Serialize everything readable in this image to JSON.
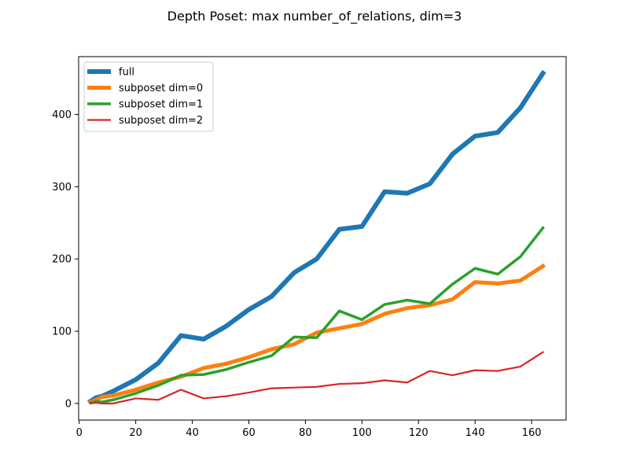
{
  "chart_data": {
    "type": "line",
    "title": "Depth Poset: max number_of_relations, dim=3",
    "xlabel": "",
    "ylabel": "",
    "xlim": [
      -0.2,
      172.2
    ],
    "ylim": [
      -23,
      480
    ],
    "xticks": [
      0,
      20,
      40,
      60,
      80,
      100,
      120,
      140,
      160
    ],
    "yticks": [
      0,
      100,
      200,
      300,
      400
    ],
    "grid": false,
    "legend_position": "upper left",
    "series": [
      {
        "name": "full",
        "color": "#1f77b4",
        "weight": "thick",
        "x": [
          4,
          6,
          8,
          12,
          20,
          28,
          36,
          44,
          52,
          60,
          68,
          76,
          84,
          92,
          100,
          108,
          116,
          124,
          132,
          140,
          148,
          156,
          164
        ],
        "y": [
          3,
          8,
          10,
          17,
          33,
          56,
          94,
          89,
          107,
          130,
          148,
          181,
          200,
          241,
          245,
          293,
          291,
          304,
          345,
          370,
          375,
          409,
          457
        ]
      },
      {
        "name": "subposet dim=0",
        "color": "#ff7f0e",
        "weight": "medium",
        "x": [
          4,
          6,
          8,
          12,
          20,
          28,
          36,
          44,
          52,
          60,
          68,
          76,
          84,
          92,
          100,
          108,
          116,
          124,
          132,
          140,
          148,
          156,
          164
        ],
        "y": [
          2,
          5,
          9,
          11,
          19,
          29,
          37,
          49,
          55,
          64,
          75,
          82,
          98,
          104,
          110,
          124,
          132,
          136,
          144,
          168,
          166,
          170,
          190
        ]
      },
      {
        "name": "subposet dim=1",
        "color": "#2ca02c",
        "weight": "normal",
        "x": [
          4,
          6,
          8,
          12,
          20,
          28,
          36,
          44,
          52,
          60,
          68,
          76,
          84,
          92,
          100,
          108,
          116,
          124,
          132,
          140,
          148,
          156,
          164
        ],
        "y": [
          1,
          3,
          2,
          5,
          14,
          25,
          39,
          40,
          47,
          57,
          66,
          92,
          91,
          128,
          116,
          137,
          143,
          138,
          165,
          187,
          179,
          203,
          243
        ]
      },
      {
        "name": "subposet dim=2",
        "color": "#d62728",
        "weight": "thin",
        "x": [
          4,
          6,
          8,
          12,
          20,
          28,
          36,
          44,
          52,
          60,
          68,
          76,
          84,
          92,
          100,
          108,
          116,
          124,
          132,
          140,
          148,
          156,
          164
        ],
        "y": [
          0,
          1,
          0,
          0,
          7,
          5,
          19,
          7,
          10,
          15,
          21,
          22,
          23,
          27,
          28,
          32,
          29,
          45,
          39,
          46,
          45,
          51,
          71
        ]
      }
    ]
  }
}
